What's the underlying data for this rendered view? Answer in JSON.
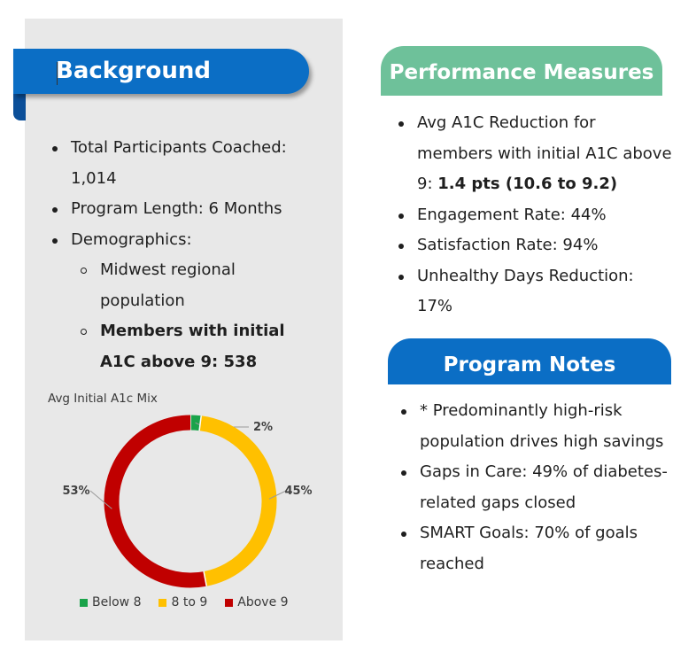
{
  "background": {
    "title": "Background",
    "items": [
      {
        "label": "Total Participants Coached: 1,014"
      },
      {
        "label": "Program Length: 6 Months"
      },
      {
        "label": "Demographics:"
      }
    ],
    "demographics": [
      {
        "label": "Midwest regional population"
      },
      {
        "label": "Members with initial A1C above 9: 538"
      }
    ]
  },
  "performance": {
    "title": "Performance Measures",
    "avg_prefix": "Avg A1C Reduction for members with initial A1C above 9: ",
    "avg_bold": "1.4 pts (10.6 to 9.2)",
    "items": [
      {
        "label": "Engagement Rate: 44%"
      },
      {
        "label": "Satisfaction Rate: 94%"
      },
      {
        "label": "Unhealthy Days Reduction: 17%"
      }
    ]
  },
  "notes": {
    "title": "Program Notes",
    "items": [
      {
        "label": "* Predominantly high-risk population drives high savings"
      },
      {
        "label": "Gaps in Care: 49% of diabetes-related gaps closed"
      },
      {
        "label": "SMART Goals: 70% of goals reached"
      }
    ]
  },
  "chart_data": {
    "type": "pie",
    "title": "Avg Initial A1c Mix",
    "donut": true,
    "categories": [
      "Below 8",
      "8 to 9",
      "Above 9"
    ],
    "values": [
      2,
      45,
      53
    ],
    "labels": [
      "2%",
      "45%",
      "53%"
    ],
    "colors": [
      "#1aa34a",
      "#ffc000",
      "#c00000"
    ],
    "legend": "bottom"
  }
}
